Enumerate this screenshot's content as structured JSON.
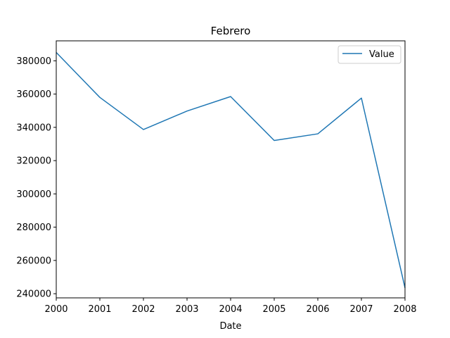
{
  "chart_data": {
    "type": "line",
    "title": "Febrero",
    "xlabel": "Date",
    "ylabel": "",
    "x": [
      "2000",
      "2001",
      "2002",
      "2003",
      "2004",
      "2005",
      "2006",
      "2007",
      "2008"
    ],
    "series": [
      {
        "name": "Value",
        "color": "#1f77b4",
        "values": [
          385000,
          358000,
          338700,
          349800,
          358500,
          332100,
          336100,
          357600,
          243500
        ]
      }
    ],
    "xlim": [
      2000,
      2008
    ],
    "ylim": [
      237500,
      392000
    ],
    "x_ticks": [
      "2000",
      "2001",
      "2002",
      "2003",
      "2004",
      "2005",
      "2006",
      "2007",
      "2008"
    ],
    "y_ticks": [
      "240000",
      "260000",
      "280000",
      "300000",
      "320000",
      "340000",
      "360000",
      "380000"
    ],
    "y_tick_values": [
      240000,
      260000,
      280000,
      300000,
      320000,
      340000,
      360000,
      380000
    ],
    "grid": false,
    "legend_position": "top-right"
  }
}
